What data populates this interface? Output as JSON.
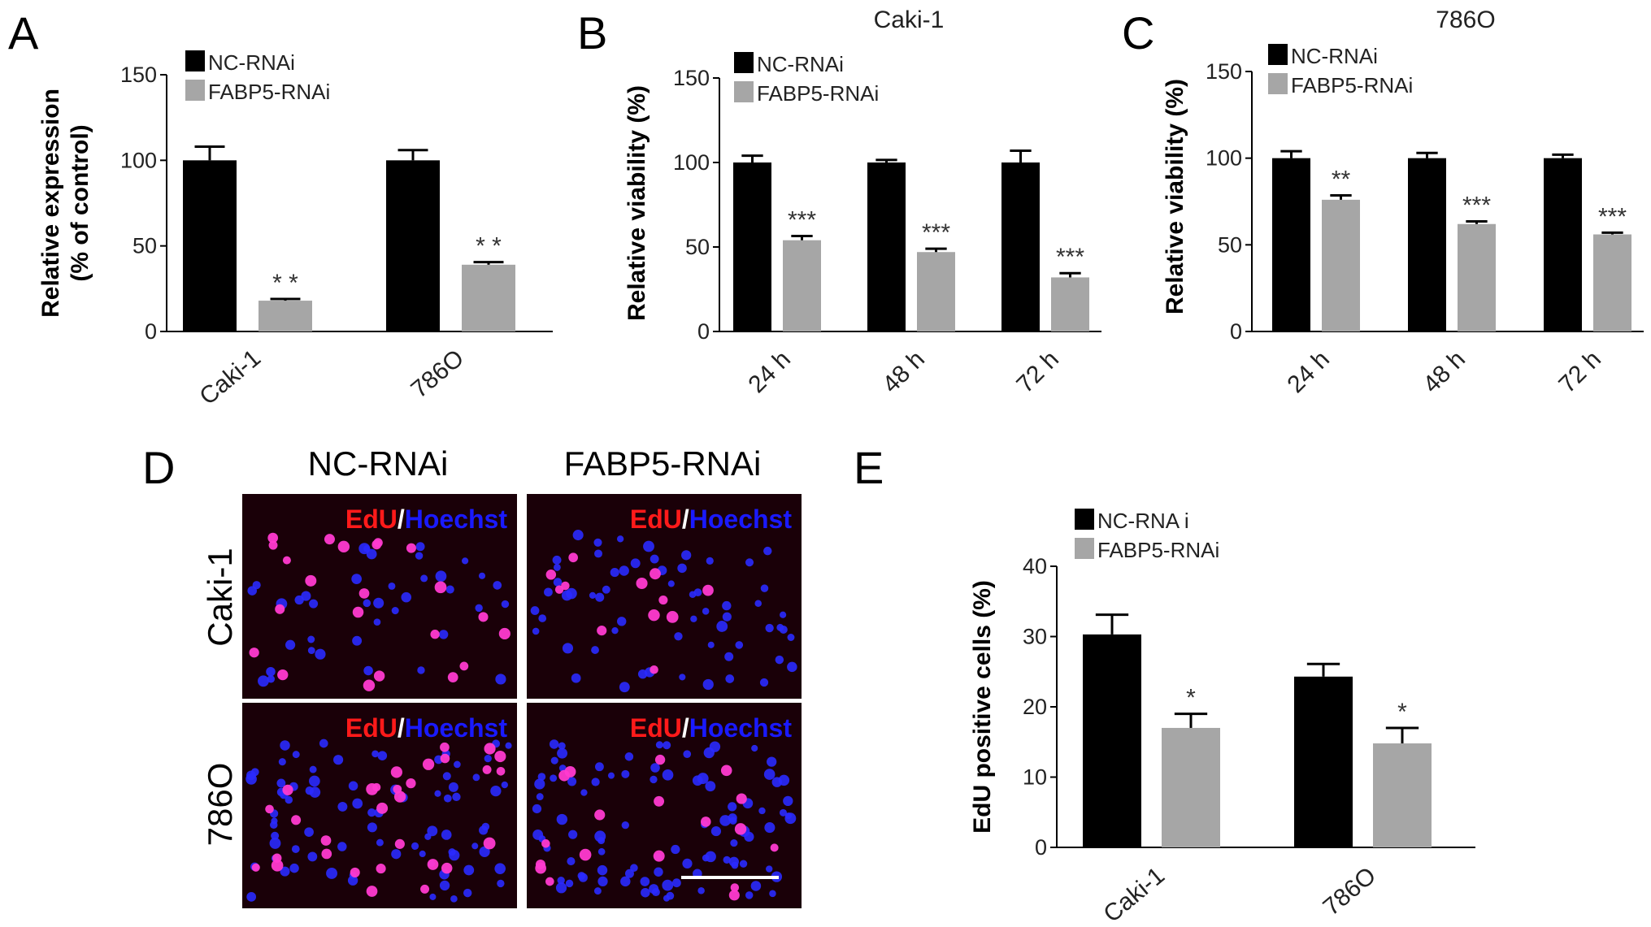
{
  "colors": {
    "nc": "#000000",
    "fabp5": "#a6a6a6",
    "edu": "#ff1a1a",
    "hoechst": "#1a1aff",
    "micrograph_bg": "#1a0008"
  },
  "panel_letters": [
    "A",
    "B",
    "C",
    "D",
    "E"
  ],
  "chart_data": [
    {
      "id": "A",
      "type": "bar",
      "title": "",
      "ylabel": [
        "Relative expression",
        "(% of control)"
      ],
      "ylim": [
        0,
        150
      ],
      "yticks": [
        0,
        50,
        100,
        150
      ],
      "categories": [
        "Caki-1",
        "786O"
      ],
      "series": [
        {
          "name": "NC-RNAi",
          "values": [
            100,
            100
          ],
          "errors": [
            8,
            6
          ]
        },
        {
          "name": "FABP5-RNAi",
          "values": [
            18,
            39
          ],
          "errors": [
            1,
            1.5
          ]
        }
      ],
      "significance": [
        "* *",
        "* *"
      ],
      "legend": "top-left",
      "grid": false
    },
    {
      "id": "B",
      "type": "bar",
      "title": "Caki-1",
      "ylabel": [
        "Relative viability (%)"
      ],
      "ylim": [
        0,
        150
      ],
      "yticks": [
        0,
        50,
        100,
        150
      ],
      "categories": [
        "24 h",
        "48 h",
        "72 h"
      ],
      "series": [
        {
          "name": "NC-RNAi",
          "values": [
            100,
            100,
            100
          ],
          "errors": [
            4,
            1.5,
            7
          ]
        },
        {
          "name": "FABP5-RNAi",
          "values": [
            54,
            47,
            32
          ],
          "errors": [
            2.5,
            2,
            2.5
          ]
        }
      ],
      "significance": [
        "***",
        "***",
        "***"
      ],
      "legend": "top-left",
      "grid": false
    },
    {
      "id": "C",
      "type": "bar",
      "title": "786O",
      "ylabel": [
        "Relative viability (%)"
      ],
      "ylim": [
        0,
        150
      ],
      "yticks": [
        0,
        50,
        100,
        150
      ],
      "categories": [
        "24 h",
        "48 h",
        "72 h"
      ],
      "series": [
        {
          "name": "NC-RNAi",
          "values": [
            100,
            100,
            100
          ],
          "errors": [
            4,
            3,
            2
          ]
        },
        {
          "name": "FABP5-RNAi",
          "values": [
            76,
            62,
            56
          ],
          "errors": [
            2.5,
            1.5,
            1
          ]
        }
      ],
      "significance": [
        "**",
        "***",
        "***"
      ],
      "legend": "top-left",
      "grid": false
    },
    {
      "id": "E",
      "type": "bar",
      "title": "",
      "ylabel": [
        "EdU positive cells (%)"
      ],
      "ylim": [
        0,
        40
      ],
      "yticks": [
        0,
        10,
        20,
        30,
        40
      ],
      "categories": [
        "Caki-1",
        "786O"
      ],
      "series": [
        {
          "name": "NC-RNA i",
          "values": [
            30.3,
            24.3
          ],
          "errors": [
            2.8,
            1.8
          ]
        },
        {
          "name": "FABP5-RNAi",
          "values": [
            17,
            14.8
          ],
          "errors": [
            2,
            2.2
          ]
        }
      ],
      "significance": [
        "*",
        "*"
      ],
      "legend": "top-left",
      "grid": false
    }
  ],
  "micrographs": {
    "column_headers": [
      "NC-RNAi",
      "FABP5-RNAi"
    ],
    "row_labels": [
      "Caki-1",
      "786O"
    ],
    "stain_edu": "EdU",
    "stain_sep": "/",
    "stain_hoechst": "Hoechst",
    "scale_bar": true
  }
}
